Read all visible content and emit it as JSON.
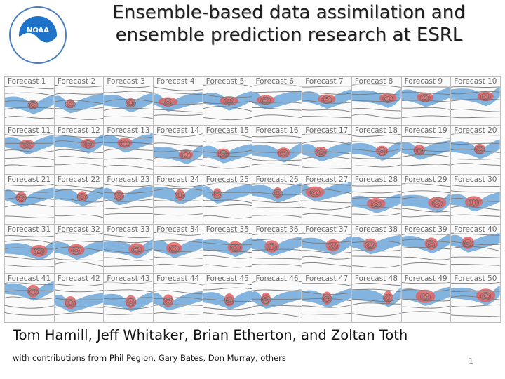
{
  "logo": {
    "text": "NOAA",
    "name": "noaa-logo",
    "accent": "#1e73c9"
  },
  "title": {
    "line1": "Ensemble-based data assimilation and",
    "line2": "ensemble prediction research at ESRL"
  },
  "panels": [
    "Forecast 1",
    "Forecast 2",
    "Forecast 3",
    "Forecast 4",
    "Forecast 5",
    "Forecast 6",
    "Forecast 7",
    "Forecast 8",
    "Forecast 9",
    "Forecast 10",
    "Forecast 11",
    "Forecast 12",
    "Forecast 13",
    "Forecast 14",
    "Forecast 15",
    "Forecast 16",
    "Forecast 17",
    "Forecast 18",
    "Forecast 19",
    "Forecast 20",
    "Forecast 21",
    "Forecast 22",
    "Forecast 23",
    "Forecast 24",
    "Forecast 25",
    "Forecast 26",
    "Forecast 27",
    "Forecast 28",
    "Forecast 29",
    "Forecast 30",
    "Forecast 31",
    "Forecast 32",
    "Forecast 33",
    "Forecast 34",
    "Forecast 35",
    "Forecast 36",
    "Forecast 37",
    "Forecast 38",
    "Forecast 39",
    "Forecast 40",
    "Forecast 41",
    "Forecast 42",
    "Forecast 43",
    "Forecast 44",
    "Forecast 45",
    "Forecast 46",
    "Forecast 47",
    "Forecast 48",
    "Forecast 49",
    "Forecast 50"
  ],
  "authors": "Tom Hamill, Jeff Whitaker, Brian Etherton, and Zoltan Toth",
  "contributions": "with contributions from Phil Pegion, Gary Bates, Don Murray, others",
  "page_number": "1",
  "colors": {
    "title": "#1f1f1f",
    "blue_fill": "#5b9bd5",
    "red_fill": "#e06060"
  }
}
